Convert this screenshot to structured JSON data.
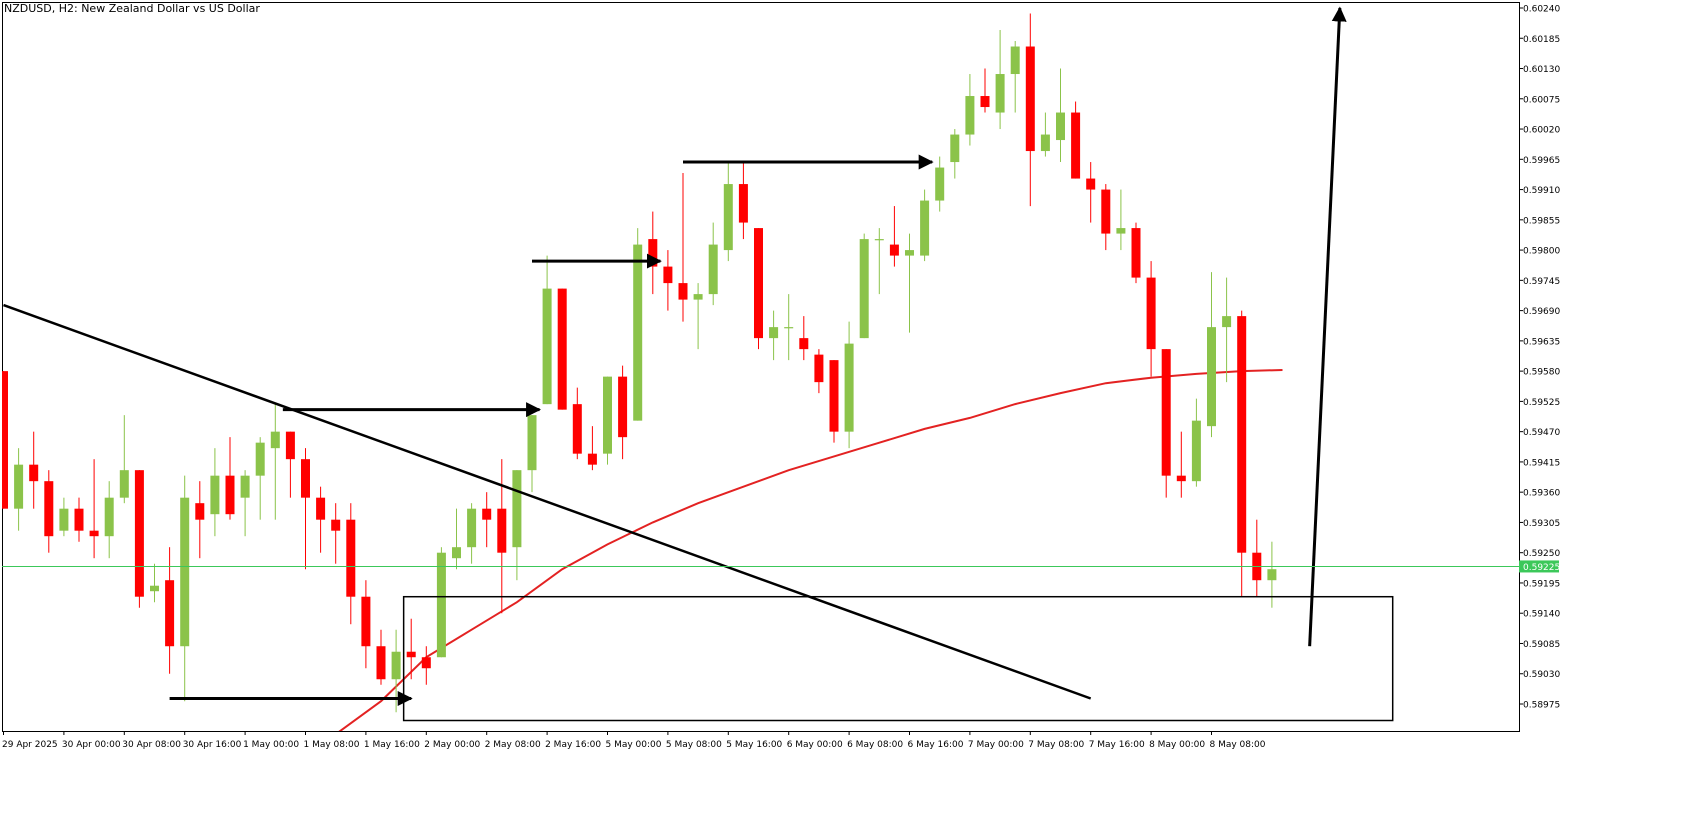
{
  "title": "NZDUSD, H2:  New Zealand Dollar vs US Dollar",
  "colors": {
    "bull": "#8bc34a",
    "bear": "#ff0000",
    "ma": "#e32222",
    "price_line": "#3cc85a",
    "price_label_bg": "#3cc85a",
    "annotation": "#000000"
  },
  "chart_data": {
    "type": "candlestick",
    "symbol": "NZDUSD",
    "timeframe": "H2",
    "description": "New Zealand Dollar vs US Dollar",
    "ylim": [
      0.58935,
      0.60255
    ],
    "y_ticks": [
      "0.60240",
      "0.60185",
      "0.60130",
      "0.60075",
      "0.60020",
      "0.59965",
      "0.59910",
      "0.59855",
      "0.59800",
      "0.59745",
      "0.59690",
      "0.59635",
      "0.59580",
      "0.59525",
      "0.59470",
      "0.59415",
      "0.59360",
      "0.59305",
      "0.59250",
      "0.59195",
      "0.59140",
      "0.59085",
      "0.59030",
      "0.58975"
    ],
    "x_ticks": [
      {
        "label": "29 Apr 2025",
        "i": 0
      },
      {
        "label": "30 Apr 00:00",
        "i": 4
      },
      {
        "label": "30 Apr 08:00",
        "i": 8
      },
      {
        "label": "30 Apr 16:00",
        "i": 12
      },
      {
        "label": "1 May 00:00",
        "i": 16
      },
      {
        "label": "1 May 08:00",
        "i": 20
      },
      {
        "label": "1 May 16:00",
        "i": 24
      },
      {
        "label": "2 May 00:00",
        "i": 28
      },
      {
        "label": "2 May 08:00",
        "i": 32
      },
      {
        "label": "2 May 16:00",
        "i": 36
      },
      {
        "label": "5 May 00:00",
        "i": 40
      },
      {
        "label": "5 May 08:00",
        "i": 44
      },
      {
        "label": "5 May 16:00",
        "i": 48
      },
      {
        "label": "6 May 00:00",
        "i": 52
      },
      {
        "label": "6 May 08:00",
        "i": 56
      },
      {
        "label": "6 May 16:00",
        "i": 60
      },
      {
        "label": "7 May 00:00",
        "i": 64
      },
      {
        "label": "7 May 08:00",
        "i": 68
      },
      {
        "label": "7 May 16:00",
        "i": 72
      },
      {
        "label": "8 May 00:00",
        "i": 76
      },
      {
        "label": "8 May 08:00",
        "i": 80
      }
    ],
    "current_price": "0.59225",
    "candles": [
      [
        0.5958,
        0.5958,
        0.5933,
        0.5933
      ],
      [
        0.5933,
        0.5944,
        0.5929,
        0.5941
      ],
      [
        0.5941,
        0.5947,
        0.5933,
        0.5938
      ],
      [
        0.5938,
        0.594,
        0.5925,
        0.5928
      ],
      [
        0.5929,
        0.5935,
        0.5928,
        0.5933
      ],
      [
        0.5933,
        0.5935,
        0.5927,
        0.5929
      ],
      [
        0.5929,
        0.5942,
        0.5924,
        0.5928
      ],
      [
        0.5928,
        0.5938,
        0.5924,
        0.5935
      ],
      [
        0.5935,
        0.595,
        0.5934,
        0.594
      ],
      [
        0.594,
        0.594,
        0.5915,
        0.5917
      ],
      [
        0.5918,
        0.5923,
        0.5916,
        0.5919
      ],
      [
        0.592,
        0.5926,
        0.5903,
        0.5908
      ],
      [
        0.5908,
        0.5939,
        0.5898,
        0.5935
      ],
      [
        0.5934,
        0.5938,
        0.5924,
        0.5931
      ],
      [
        0.5932,
        0.5944,
        0.5928,
        0.5939
      ],
      [
        0.5939,
        0.5946,
        0.5931,
        0.5932
      ],
      [
        0.5935,
        0.594,
        0.5928,
        0.5939
      ],
      [
        0.5939,
        0.5946,
        0.5931,
        0.5945
      ],
      [
        0.5944,
        0.5952,
        0.5931,
        0.5947
      ],
      [
        0.5947,
        0.5947,
        0.5935,
        0.5942
      ],
      [
        0.5942,
        0.5944,
        0.5922,
        0.5935
      ],
      [
        0.5935,
        0.5937,
        0.5925,
        0.5931
      ],
      [
        0.5931,
        0.5934,
        0.5923,
        0.5929
      ],
      [
        0.5931,
        0.5934,
        0.5912,
        0.5917
      ],
      [
        0.5917,
        0.592,
        0.5904,
        0.5908
      ],
      [
        0.5908,
        0.5911,
        0.5901,
        0.5902
      ],
      [
        0.5902,
        0.5911,
        0.5896,
        0.5907
      ],
      [
        0.5907,
        0.5913,
        0.5902,
        0.5906
      ],
      [
        0.5906,
        0.5908,
        0.5901,
        0.5904
      ],
      [
        0.5906,
        0.5926,
        0.5906,
        0.5925
      ],
      [
        0.5924,
        0.5933,
        0.5922,
        0.5926
      ],
      [
        0.5926,
        0.5934,
        0.5923,
        0.5933
      ],
      [
        0.5933,
        0.5936,
        0.5926,
        0.5931
      ],
      [
        0.5933,
        0.5942,
        0.5914,
        0.5925
      ],
      [
        0.5926,
        0.594,
        0.592,
        0.594
      ],
      [
        0.594,
        0.595,
        0.5936,
        0.595
      ],
      [
        0.5952,
        0.5979,
        0.5952,
        0.5973
      ],
      [
        0.5973,
        0.5973,
        0.5951,
        0.5951
      ],
      [
        0.5952,
        0.5955,
        0.5942,
        0.5943
      ],
      [
        0.5943,
        0.5948,
        0.594,
        0.5941
      ],
      [
        0.5943,
        0.5957,
        0.5941,
        0.5957
      ],
      [
        0.5957,
        0.5959,
        0.5942,
        0.5946
      ],
      [
        0.5949,
        0.5984,
        0.5949,
        0.5981
      ],
      [
        0.5982,
        0.5987,
        0.5972,
        0.5977
      ],
      [
        0.5977,
        0.598,
        0.5969,
        0.5974
      ],
      [
        0.5974,
        0.5994,
        0.5967,
        0.5971
      ],
      [
        0.5971,
        0.5974,
        0.5962,
        0.5972
      ],
      [
        0.5972,
        0.5985,
        0.597,
        0.5981
      ],
      [
        0.598,
        0.5996,
        0.5978,
        0.5992
      ],
      [
        0.5992,
        0.5996,
        0.5982,
        0.5985
      ],
      [
        0.5984,
        0.5984,
        0.5962,
        0.5964
      ],
      [
        0.5964,
        0.5969,
        0.596,
        0.5966
      ],
      [
        0.5966,
        0.5972,
        0.596,
        0.5966
      ],
      [
        0.5964,
        0.5968,
        0.596,
        0.5962
      ],
      [
        0.5961,
        0.5962,
        0.5954,
        0.5956
      ],
      [
        0.596,
        0.596,
        0.5945,
        0.5947
      ],
      [
        0.5947,
        0.5967,
        0.5944,
        0.5963
      ],
      [
        0.5964,
        0.5983,
        0.5964,
        0.5982
      ],
      [
        0.5982,
        0.5984,
        0.5972,
        0.5982
      ],
      [
        0.5981,
        0.5988,
        0.5977,
        0.5979
      ],
      [
        0.5979,
        0.5983,
        0.5965,
        0.598
      ],
      [
        0.5979,
        0.5991,
        0.5978,
        0.5989
      ],
      [
        0.5989,
        0.5997,
        0.5987,
        0.5995
      ],
      [
        0.5996,
        0.6002,
        0.5993,
        0.6001
      ],
      [
        0.6001,
        0.6012,
        0.5999,
        0.6008
      ],
      [
        0.6008,
        0.6013,
        0.6005,
        0.6006
      ],
      [
        0.6005,
        0.602,
        0.6002,
        0.6012
      ],
      [
        0.6012,
        0.6018,
        0.6005,
        0.6017
      ],
      [
        0.6017,
        0.6023,
        0.5988,
        0.5998
      ],
      [
        0.5998,
        0.6005,
        0.5997,
        0.6001
      ],
      [
        0.6,
        0.6013,
        0.5996,
        0.6005
      ],
      [
        0.6005,
        0.6007,
        0.5993,
        0.5993
      ],
      [
        0.5993,
        0.5996,
        0.5985,
        0.5991
      ],
      [
        0.5991,
        0.5992,
        0.598,
        0.5983
      ],
      [
        0.5983,
        0.5991,
        0.598,
        0.5984
      ],
      [
        0.5984,
        0.5985,
        0.5974,
        0.5975
      ],
      [
        0.5975,
        0.5978,
        0.5957,
        0.5962
      ],
      [
        0.5962,
        0.5962,
        0.5935,
        0.5939
      ],
      [
        0.5939,
        0.5947,
        0.5935,
        0.5938
      ],
      [
        0.5938,
        0.5953,
        0.5937,
        0.5949
      ],
      [
        0.5948,
        0.5976,
        0.5946,
        0.5966
      ],
      [
        0.5966,
        0.5975,
        0.5956,
        0.5968
      ],
      [
        0.5968,
        0.5969,
        0.5917,
        0.5925
      ],
      [
        0.5925,
        0.5931,
        0.5917,
        0.592
      ],
      [
        0.592,
        0.5927,
        0.5915,
        0.5922
      ]
    ],
    "ma_series": [
      [
        21.5,
        0.5891
      ],
      [
        25,
        0.5898
      ],
      [
        28,
        0.5906
      ],
      [
        31,
        0.5911
      ],
      [
        34,
        0.5916
      ],
      [
        37,
        0.5922
      ],
      [
        40,
        0.59265
      ],
      [
        43,
        0.59305
      ],
      [
        46,
        0.5934
      ],
      [
        49,
        0.5937
      ],
      [
        52,
        0.594
      ],
      [
        55,
        0.59425
      ],
      [
        58,
        0.5945
      ],
      [
        61,
        0.59475
      ],
      [
        64,
        0.59495
      ],
      [
        67,
        0.5952
      ],
      [
        70,
        0.5954
      ],
      [
        73,
        0.59558
      ],
      [
        76,
        0.59568
      ],
      [
        79,
        0.59575
      ],
      [
        82,
        0.5958
      ],
      [
        84.7,
        0.59582
      ]
    ]
  },
  "annotations": {
    "trendline": {
      "from": [
        0,
        0.597
      ],
      "to": [
        72,
        0.58985
      ]
    },
    "zone": {
      "from": [
        26.5,
        0.5917
      ],
      "to": [
        92,
        0.58945
      ]
    },
    "arrows": [
      {
        "from": [
          11,
          0.58985
        ],
        "to": [
          27,
          0.58985
        ]
      },
      {
        "from": [
          18.5,
          0.5951
        ],
        "to": [
          35.5,
          0.5951
        ]
      },
      {
        "from": [
          35,
          0.5978
        ],
        "to": [
          43.5,
          0.5978
        ]
      },
      {
        "from": [
          45,
          0.5996
        ],
        "to": [
          61.5,
          0.5996
        ]
      },
      {
        "from": [
          86.5,
          0.5908
        ],
        "to": [
          88.5,
          0.6024
        ]
      }
    ]
  }
}
